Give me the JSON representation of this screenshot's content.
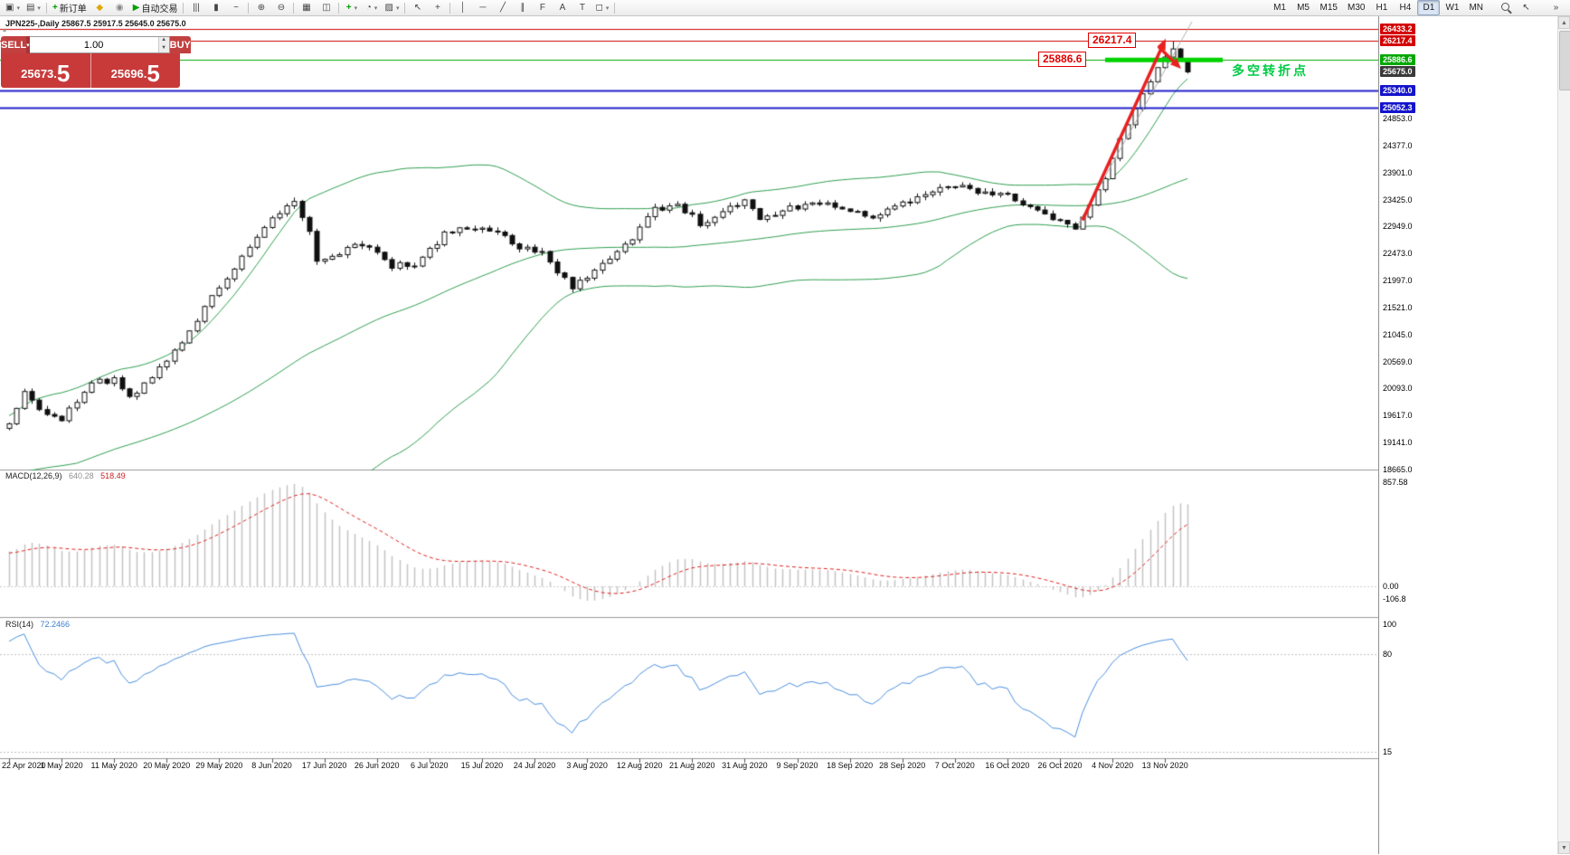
{
  "toolbar": {
    "groups": [
      {
        "name": "window",
        "separator_after": true,
        "items": [
          {
            "name": "new-chart-button",
            "icon": "▣",
            "dropdown": true
          },
          {
            "name": "profiles-button",
            "icon": "▤",
            "dropdown": true
          }
        ]
      },
      {
        "name": "trading",
        "separator_after": true,
        "items": [
          {
            "name": "new-order-button",
            "icon": "+",
            "icon_color": "#009900",
            "label": "新订单"
          },
          {
            "name": "metaeditor-button",
            "icon": "◆",
            "icon_color": "#e0a800"
          },
          {
            "name": "market-depth-button",
            "icon": "◉",
            "icon_color": "#888888"
          },
          {
            "name": "autotrading-button",
            "icon": "▶",
            "icon_color": "#00a000",
            "label": "自动交易"
          }
        ]
      },
      {
        "name": "chart-type",
        "separator_after": true,
        "items": [
          {
            "name": "bar-chart-button",
            "icon": "|||"
          },
          {
            "name": "candlestick-chart-button",
            "icon": "▮"
          },
          {
            "name": "line-chart-button",
            "icon": "~"
          }
        ]
      },
      {
        "name": "zoom",
        "separator_after": true,
        "items": [
          {
            "name": "zoom-in-button",
            "icon": "⊕"
          },
          {
            "name": "zoom-out-button",
            "icon": "⊖"
          }
        ]
      },
      {
        "name": "layout",
        "separator_after": true,
        "items": [
          {
            "name": "grid-button",
            "icon": "▦"
          },
          {
            "name": "tile-windows-button",
            "icon": "◫"
          }
        ]
      },
      {
        "name": "insert",
        "separator_after": true,
        "items": [
          {
            "name": "indicators-button",
            "icon": "+",
            "icon_color": "#00a000",
            "dropdown": true
          },
          {
            "name": "periods-button",
            "icon": "◔",
            "dropdown": true
          },
          {
            "name": "templates-button",
            "icon": "▨",
            "dropdown": true
          }
        ]
      },
      {
        "name": "cursors",
        "separator_after": true,
        "items": [
          {
            "name": "cursor-button",
            "icon": "↖"
          },
          {
            "name": "crosshair-button",
            "icon": "+"
          }
        ]
      },
      {
        "name": "draw",
        "separator_after": true,
        "items": [
          {
            "name": "vertical-line-button",
            "icon": "│"
          },
          {
            "name": "horizontal-line-button",
            "icon": "─"
          },
          {
            "name": "trendline-button",
            "icon": "╱"
          },
          {
            "name": "channel-button",
            "icon": "∥"
          },
          {
            "name": "fibonacci-button",
            "icon": "F"
          },
          {
            "name": "text-button",
            "icon": "A"
          },
          {
            "name": "label-button",
            "icon": "T"
          },
          {
            "name": "shapes-button",
            "icon": "◻",
            "dropdown": true
          }
        ]
      },
      {
        "name": "timeframes",
        "separator_after": false,
        "items": [
          {
            "name": "tf-m1-button",
            "label": "M1"
          },
          {
            "name": "tf-m5-button",
            "label": "M5"
          },
          {
            "name": "tf-m15-button",
            "label": "M15"
          },
          {
            "name": "tf-m30-button",
            "label": "M30"
          },
          {
            "name": "tf-h1-button",
            "label": "H1"
          },
          {
            "name": "tf-h4-button",
            "label": "H4"
          },
          {
            "name": "tf-d1-button",
            "label": "D1",
            "active": true
          },
          {
            "name": "tf-w1-button",
            "label": "W1"
          },
          {
            "name": "tf-mn-button",
            "label": "MN"
          }
        ]
      },
      {
        "name": "search",
        "separator_after": false,
        "items": [
          {
            "name": "search-button",
            "shape": "magnifier"
          },
          {
            "name": "pointer-button",
            "icon": "↖"
          }
        ]
      },
      {
        "name": "overflow",
        "separator_after": false,
        "items": [
          {
            "name": "toolbar-overflow-button",
            "icon": "»"
          }
        ]
      }
    ]
  },
  "chart": {
    "title": "JPN225-,Daily 25867.5 25917.5 25645.0 25675.0",
    "symbol": "JPN225-",
    "period": "Daily",
    "ohlc": {
      "open": "25867.5",
      "high": "25917.5",
      "low": "25645.0",
      "close": "25675.0"
    }
  },
  "trade_panel": {
    "collapse_glyph": "▴",
    "sell_label": "SELL",
    "buy_label": "BUY",
    "volume": "1.00",
    "spin_up": "▲",
    "spin_down": "▼",
    "sell_price": "25673.5",
    "sell_price_main": "25673.",
    "sell_price_pip": "5",
    "buy_price": "25696.5",
    "buy_price_main": "25696.",
    "buy_price_pip": "5",
    "panel_color": "#c83a3a"
  },
  "annotations": {
    "high_label": "26217.4",
    "pivot_label": "25886.6",
    "note": "多空转折点",
    "note_color": "#00cc44",
    "arrow_color": "#e82020",
    "segment_color": "#00d200",
    "trendline_color": "#b0b0b0"
  },
  "indicators": {
    "macd": {
      "label": "MACD(12,26,9)",
      "value_main": "640.28",
      "value_signal": "518.49",
      "histogram_color": "#c4c4c4",
      "signal_color": "#dd2222",
      "scale": [
        {
          "label": "857.58",
          "value": 857.58
        },
        {
          "label": "0.00",
          "value": 0
        },
        {
          "label": "-106.8",
          "value": -106.8
        }
      ]
    },
    "rsi": {
      "label": "RSI(14)",
      "value": "72.2466",
      "line_color": "#4a8fdd",
      "scale": [
        {
          "label": "100",
          "value": 100
        },
        {
          "label": "80",
          "value": 80
        },
        {
          "label": "15",
          "value": 15
        }
      ]
    }
  },
  "price_scale": {
    "tags": [
      {
        "label": "26433.2",
        "value": 26433.2,
        "bg": "#d40000"
      },
      {
        "label": "26217.4",
        "value": 26217.4,
        "bg": "#d40000"
      },
      {
        "label": "25886.6",
        "value": 25886.6,
        "bg": "#00a800"
      },
      {
        "label": "25675.0",
        "value": 25675.0,
        "bg": "#3a3a3a"
      },
      {
        "label": "25340.0",
        "value": 25340.0,
        "bg": "#1414cc"
      },
      {
        "label": "25052.3",
        "value": 25052.3,
        "bg": "#1414cc"
      }
    ],
    "ticks": [
      {
        "label": "24853.0",
        "value": 24853.0
      },
      {
        "label": "24377.0",
        "value": 24377.0
      },
      {
        "label": "23901.0",
        "value": 23901.0
      },
      {
        "label": "23425.0",
        "value": 23425.0
      },
      {
        "label": "22949.0",
        "value": 22949.0
      },
      {
        "label": "22473.0",
        "value": 22473.0
      },
      {
        "label": "21997.0",
        "value": 21997.0
      },
      {
        "label": "21521.0",
        "value": 21521.0
      },
      {
        "label": "21045.0",
        "value": 21045.0
      },
      {
        "label": "20569.0",
        "value": 20569.0
      },
      {
        "label": "20093.0",
        "value": 20093.0
      },
      {
        "label": "19617.0",
        "value": 19617.0
      },
      {
        "label": "19141.0",
        "value": 19141.0
      },
      {
        "label": "18665.0",
        "value": 18665.0
      }
    ]
  },
  "time_scale": {
    "dates": [
      "22 Apr 2020",
      "1 May 2020",
      "11 May 2020",
      "20 May 2020",
      "29 May 2020",
      "8 Jun 2020",
      "17 Jun 2020",
      "26 Jun 2020",
      "6 Jul 2020",
      "15 Jul 2020",
      "24 Jul 2020",
      "3 Aug 2020",
      "12 Aug 2020",
      "21 Aug 2020",
      "31 Aug 2020",
      "9 Sep 2020",
      "18 Sep 2020",
      "28 Sep 2020",
      "7 Oct 2020",
      "16 Oct 2020",
      "26 Oct 2020",
      "4 Nov 2020",
      "13 Nov 2020"
    ]
  },
  "scrollbar": {
    "up_glyph": "▲",
    "down_glyph": "▼"
  },
  "chart_data": {
    "type": "candlestick",
    "symbol": "JPN225-",
    "timeframe": "Daily",
    "bid": 25673.5,
    "ask": 25696.5,
    "last_ohlc": {
      "open": 25867.5,
      "high": 25917.5,
      "low": 25645.0,
      "close": 25675.0
    },
    "visible_candles": 158,
    "candles_per_label": 7,
    "price_range_visible": [
      18665,
      26543
    ],
    "key_levels": [
      {
        "price": 26433.2,
        "color": "#cc0000",
        "width": 1
      },
      {
        "price": 26217.4,
        "color": "#cc0000",
        "width": 1
      },
      {
        "price": 25886.6,
        "color": "#00aa00",
        "width": 1
      },
      {
        "price": 25340.0,
        "color": "#2020cc",
        "width": 2
      },
      {
        "price": 25052.3,
        "color": "#2020cc",
        "width": 2
      }
    ],
    "price_anchors": [
      [
        0,
        19500
      ],
      [
        2,
        20000
      ],
      [
        5,
        19650
      ],
      [
        7,
        19550
      ],
      [
        11,
        20200
      ],
      [
        14,
        20250
      ],
      [
        16,
        19900
      ],
      [
        21,
        20600
      ],
      [
        25,
        21300
      ],
      [
        28,
        21900
      ],
      [
        31,
        22400
      ],
      [
        33,
        22800
      ],
      [
        36,
        23200
      ],
      [
        38,
        23350
      ],
      [
        40,
        22900
      ],
      [
        41,
        22300
      ],
      [
        44,
        22500
      ],
      [
        47,
        22650
      ],
      [
        51,
        22250
      ],
      [
        54,
        22300
      ],
      [
        58,
        22800
      ],
      [
        61,
        22950
      ],
      [
        65,
        22850
      ],
      [
        68,
        22600
      ],
      [
        71,
        22500
      ],
      [
        73,
        22150
      ],
      [
        75,
        21850
      ],
      [
        79,
        22300
      ],
      [
        83,
        22750
      ],
      [
        86,
        23250
      ],
      [
        89,
        23350
      ],
      [
        92,
        23000
      ],
      [
        95,
        23200
      ],
      [
        98,
        23400
      ],
      [
        100,
        23100
      ],
      [
        103,
        23250
      ],
      [
        106,
        23300
      ],
      [
        109,
        23350
      ],
      [
        112,
        23250
      ],
      [
        115,
        23150
      ],
      [
        119,
        23350
      ],
      [
        123,
        23550
      ],
      [
        126,
        23650
      ],
      [
        130,
        23550
      ],
      [
        133,
        23500
      ],
      [
        136,
        23300
      ],
      [
        140,
        23050
      ],
      [
        142,
        22950
      ],
      [
        144,
        23350
      ],
      [
        146,
        23800
      ],
      [
        148,
        24450
      ],
      [
        150,
        25000
      ],
      [
        152,
        25500
      ],
      [
        154,
        25900
      ],
      [
        155,
        26080
      ],
      [
        156,
        25880
      ],
      [
        157,
        25675
      ]
    ],
    "close_overrides": {
      "155": 26080,
      "156": 25880,
      "157": 25675
    },
    "forced_high": {
      "index": 155,
      "value": 26217.4
    },
    "warmup": {
      "bars": 40,
      "from": 17700,
      "to": 19450
    },
    "bollinger": {
      "period": 50,
      "deviation": 2,
      "color": "#2f9e4f"
    },
    "macd": {
      "fast": 12,
      "slow": 26,
      "signal": 9,
      "current_main": 640.28,
      "current_signal": 518.49,
      "scale_max": 857.58,
      "scale_min": -106.8
    },
    "rsi": {
      "period": 14,
      "current": 72.2466,
      "levels": [
        80,
        15
      ]
    },
    "candle_up_color": "#ffffff",
    "candle_down_color": "#111111",
    "candle_border_color": "#111111"
  }
}
